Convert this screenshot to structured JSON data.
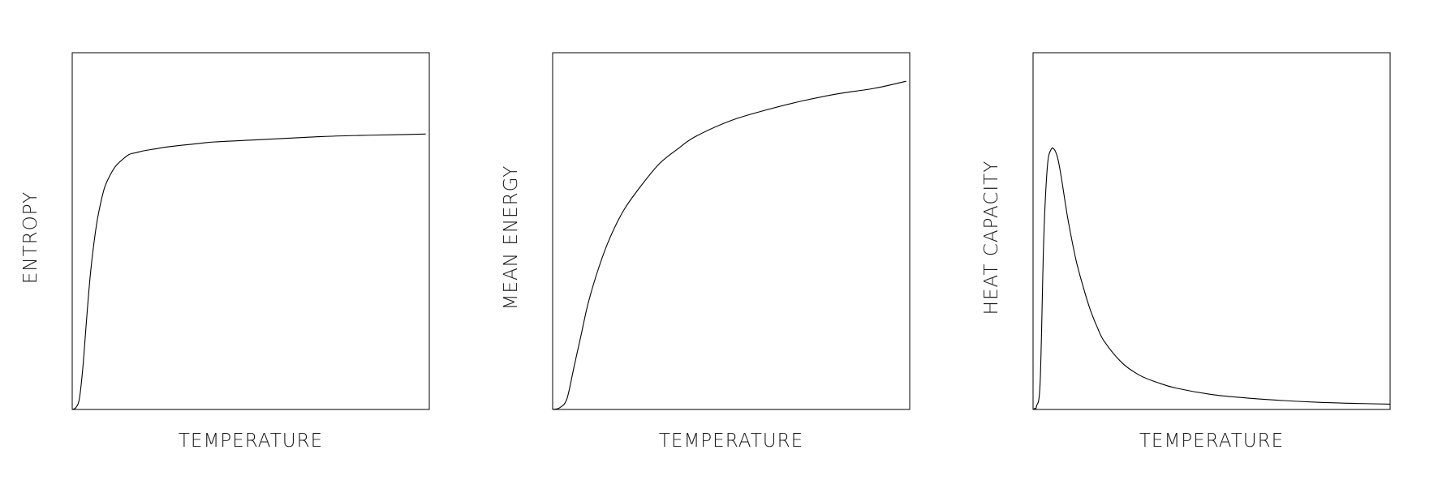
{
  "colors": {
    "background": "#ffffff",
    "line": "#000000"
  },
  "chart_data": [
    {
      "type": "line",
      "xlabel": "TEMPERATURE",
      "ylabel": "ENTROPY",
      "xlim": [
        0,
        1
      ],
      "ylim": [
        0,
        1
      ],
      "grid": false,
      "x": [
        0,
        0.01,
        0.02,
        0.03,
        0.04,
        0.05,
        0.06,
        0.07,
        0.08,
        0.09,
        0.1,
        0.12,
        0.14,
        0.16,
        0.18,
        0.2,
        0.23,
        0.26,
        0.3,
        0.35,
        0.4,
        0.5,
        0.6,
        0.7,
        0.8,
        0.9,
        0.99
      ],
      "series": [
        {
          "values": [
            0,
            0.005,
            0.03,
            0.12,
            0.25,
            0.37,
            0.46,
            0.53,
            0.58,
            0.62,
            0.645,
            0.68,
            0.7,
            0.715,
            0.72,
            0.725,
            0.73,
            0.735,
            0.74,
            0.745,
            0.75,
            0.755,
            0.76,
            0.765,
            0.768,
            0.77,
            0.772
          ]
        }
      ]
    },
    {
      "type": "line",
      "xlabel": "TEMPERATURE",
      "ylabel": "MEAN ENERGY",
      "xlim": [
        0,
        1
      ],
      "ylim": [
        0,
        1
      ],
      "grid": false,
      "x": [
        0,
        0.02,
        0.04,
        0.06,
        0.08,
        0.1,
        0.13,
        0.16,
        0.2,
        0.25,
        0.3,
        0.35,
        0.4,
        0.5,
        0.6,
        0.7,
        0.8,
        0.9,
        0.99
      ],
      "series": [
        {
          "values": [
            0,
            0.005,
            0.03,
            0.12,
            0.21,
            0.3,
            0.4,
            0.48,
            0.56,
            0.63,
            0.69,
            0.73,
            0.765,
            0.81,
            0.84,
            0.865,
            0.885,
            0.9,
            0.92
          ]
        }
      ]
    },
    {
      "type": "line",
      "xlabel": "TEMPERATURE",
      "ylabel": "HEAT CAPACITY",
      "xlim": [
        0,
        1
      ],
      "ylim": [
        0,
        1
      ],
      "grid": false,
      "x": [
        0,
        0.005,
        0.01,
        0.02,
        0.03,
        0.04,
        0.05,
        0.06,
        0.07,
        0.08,
        0.09,
        0.1,
        0.12,
        0.14,
        0.16,
        0.18,
        0.2,
        0.25,
        0.3,
        0.35,
        0.4,
        0.5,
        0.6,
        0.7,
        0.8,
        0.9,
        1.0
      ],
      "series": [
        {
          "values": [
            0,
            0.003,
            0.01,
            0.08,
            0.48,
            0.68,
            0.728,
            0.728,
            0.7,
            0.645,
            0.58,
            0.52,
            0.42,
            0.345,
            0.28,
            0.23,
            0.19,
            0.13,
            0.095,
            0.075,
            0.06,
            0.042,
            0.032,
            0.025,
            0.02,
            0.017,
            0.015
          ]
        }
      ]
    }
  ]
}
